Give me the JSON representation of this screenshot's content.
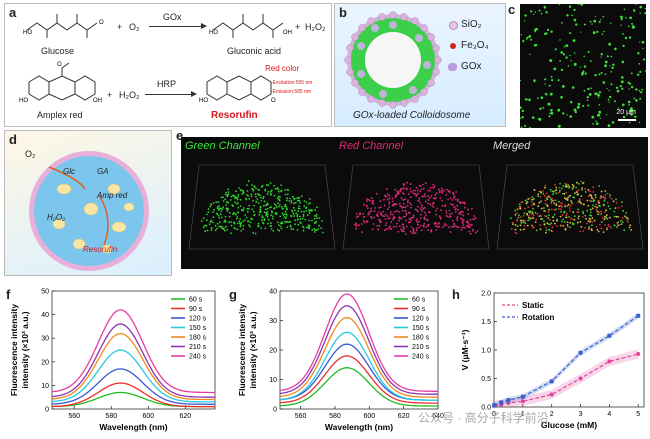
{
  "panels": {
    "a": {
      "label": "a",
      "reaction1": {
        "reactant": "Glucose",
        "plus1": "+",
        "o2": "O₂",
        "enzyme": "GOx",
        "product": "Gluconic acid",
        "plus2": "+",
        "h2o2": "H₂O₂"
      },
      "reaction2": {
        "reactant": "Amplex red",
        "plus1": "+",
        "h2o2": "H₂O₂",
        "enzyme": "HRP",
        "product": "Resorufin",
        "note_title": "Red color",
        "note_ex": "-Excitation:555 nm",
        "note_em": "-Emission:585 nm"
      }
    },
    "b": {
      "label": "b",
      "legend": [
        "SiO₂",
        "Fe₃O₄",
        "GOx"
      ],
      "caption": "GOx-loaded Colloidosome"
    },
    "c": {
      "label": "c",
      "scale": "20 μm"
    },
    "d": {
      "label": "d",
      "labels": [
        "O₂",
        "Glc",
        "GA",
        "Amp red",
        "H₂O₂",
        "Resorufin"
      ]
    },
    "e": {
      "label": "e",
      "channels": [
        "Green Channel",
        "Red Channel",
        "Merged"
      ]
    },
    "f": {
      "label": "f"
    },
    "g": {
      "label": "g"
    },
    "h": {
      "label": "h"
    }
  },
  "watermark": "公众号 · 高分子科学前沿",
  "colors": {
    "green": "#22c21a",
    "red": "#d9226b",
    "pink": "#e0449c",
    "blue": "#3a5fcd"
  },
  "chart_data": [
    {
      "id": "f",
      "type": "line",
      "xlabel": "Wavelength (nm)",
      "ylabel": "Fluorescence intensity (×10³ a.u.)",
      "xlim": [
        548,
        636
      ],
      "ylim": [
        0,
        50
      ],
      "xticks": [
        560,
        580,
        600,
        620
      ],
      "yticks": [
        0,
        10,
        20,
        30,
        40,
        50
      ],
      "peak": 585,
      "width": 17,
      "series": [
        {
          "name": "60 s",
          "color": "#22bb22",
          "peak": 7,
          "base": 1
        },
        {
          "name": "90 s",
          "color": "#e8302a",
          "peak": 11,
          "base": 1
        },
        {
          "name": "120 s",
          "color": "#3b57d6",
          "peak": 17,
          "base": 2
        },
        {
          "name": "150 s",
          "color": "#27c9dd",
          "peak": 25,
          "base": 3
        },
        {
          "name": "180 s",
          "color": "#ef8a1d",
          "peak": 32,
          "base": 4
        },
        {
          "name": "210 s",
          "color": "#8d33b3",
          "peak": 36,
          "base": 5
        },
        {
          "name": "240 s",
          "color": "#e43da0",
          "peak": 42,
          "base": 7
        }
      ]
    },
    {
      "id": "g",
      "type": "line",
      "xlabel": "Wavelength (nm)",
      "ylabel": "Fluorescence intensity (×10³ a.u.)",
      "xlim": [
        548,
        640
      ],
      "ylim": [
        0,
        40
      ],
      "xticks": [
        560,
        580,
        600,
        620,
        640
      ],
      "yticks": [
        0,
        10,
        20,
        30,
        40
      ],
      "peak": 587,
      "width": 18,
      "series": [
        {
          "name": "60 s",
          "color": "#22bb22",
          "peak": 14,
          "base": 1
        },
        {
          "name": "90 s",
          "color": "#e8302a",
          "peak": 18,
          "base": 2
        },
        {
          "name": "120 s",
          "color": "#3b57d6",
          "peak": 22,
          "base": 3
        },
        {
          "name": "150 s",
          "color": "#27c9dd",
          "peak": 26,
          "base": 3
        },
        {
          "name": "180 s",
          "color": "#ef8a1d",
          "peak": 31,
          "base": 4
        },
        {
          "name": "210 s",
          "color": "#8d33b3",
          "peak": 35,
          "base": 5
        },
        {
          "name": "240 s",
          "color": "#e43da0",
          "peak": 39,
          "base": 6
        }
      ]
    },
    {
      "id": "h",
      "type": "line",
      "xlabel": "Glucose (mM)",
      "ylabel": "V (μM·s⁻¹)",
      "xlim": [
        0,
        5.2
      ],
      "ylim": [
        0,
        2.0
      ],
      "xticks": [
        0,
        1,
        2,
        3,
        4,
        5
      ],
      "yticks": [
        0.0,
        0.5,
        1.0,
        1.5,
        2.0
      ],
      "x": [
        0,
        0.25,
        0.5,
        1,
        2,
        3,
        4,
        5
      ],
      "series": [
        {
          "name": "Static",
          "color": "#e0449c",
          "values": [
            0.02,
            0.04,
            0.07,
            0.1,
            0.22,
            0.5,
            0.8,
            0.93
          ],
          "err": 0.08
        },
        {
          "name": "Rotation",
          "color": "#3a5fcd",
          "values": [
            0.03,
            0.08,
            0.12,
            0.18,
            0.45,
            0.95,
            1.25,
            1.6
          ],
          "err": 0.05
        }
      ]
    }
  ]
}
